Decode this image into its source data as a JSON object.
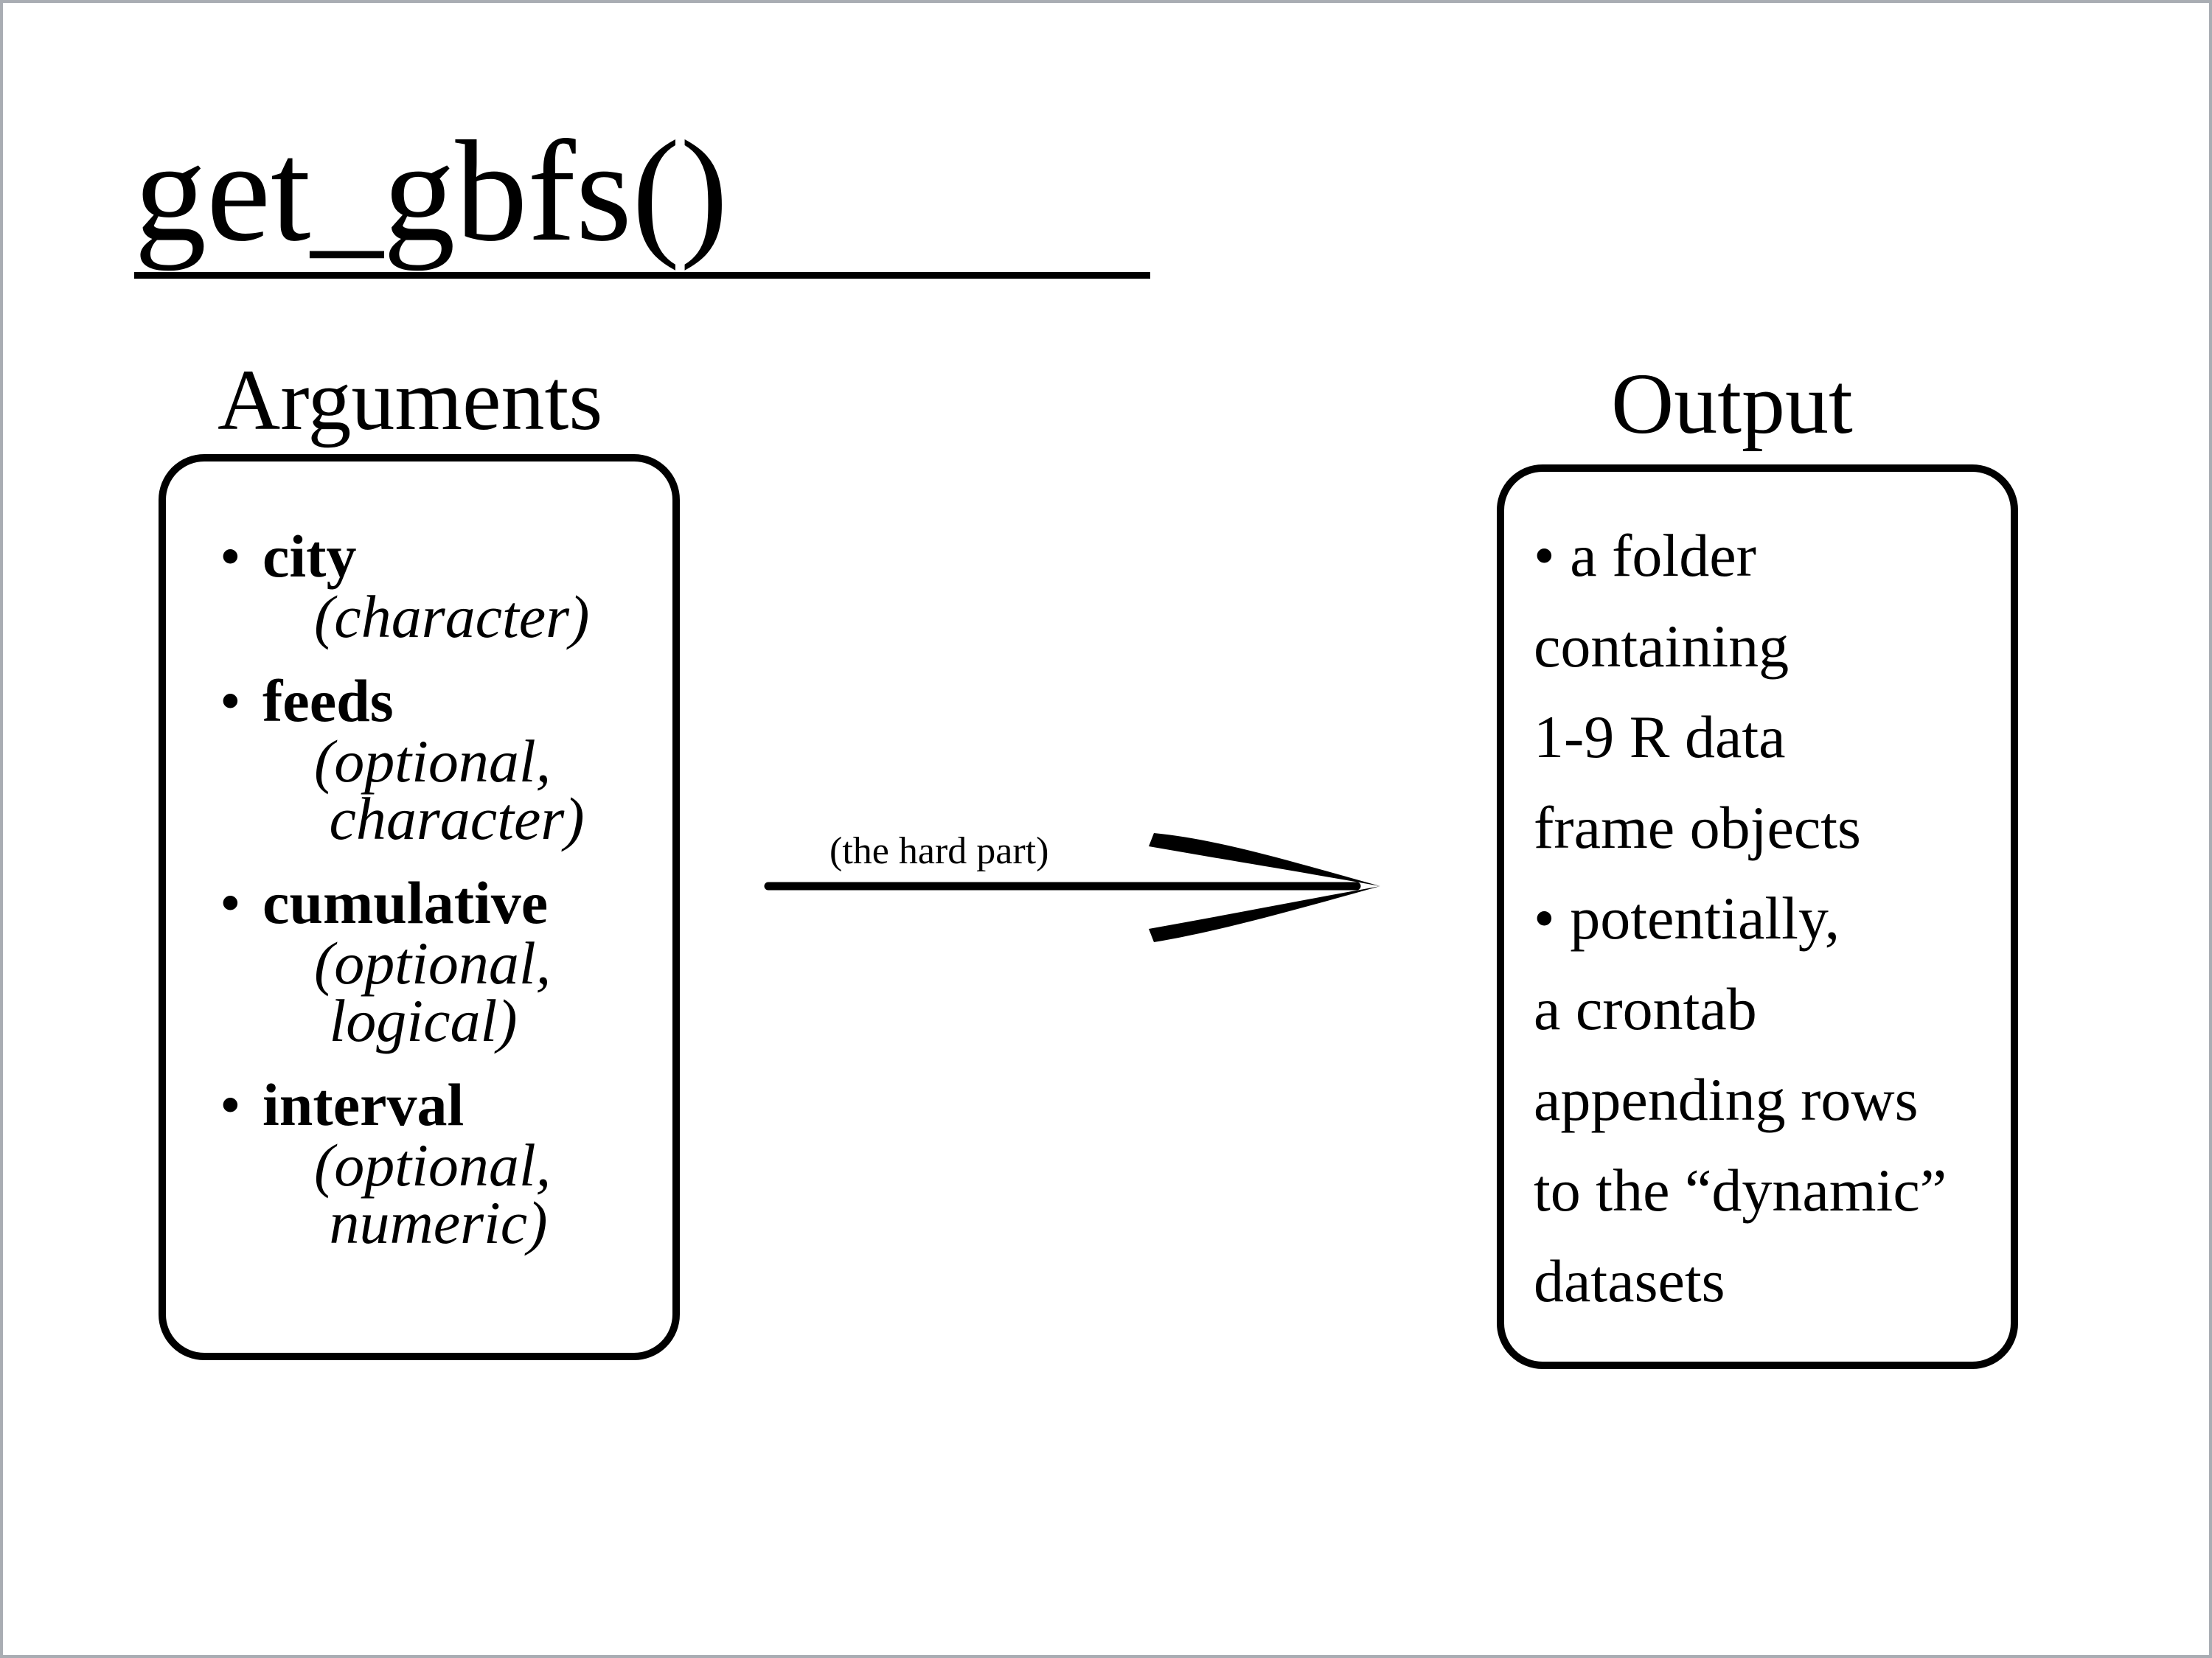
{
  "title": "get_gbfs()",
  "arguments": {
    "heading": "Arguments",
    "items": [
      {
        "bullet": "•",
        "name": "city",
        "type_lines": [
          "(character)"
        ]
      },
      {
        "bullet": "•",
        "name": "feeds",
        "type_lines": [
          "(optional,",
          " character)"
        ]
      },
      {
        "bullet": "•",
        "name": "cumulative",
        "type_lines": [
          "(optional,",
          " logical)"
        ]
      },
      {
        "bullet": "•",
        "name": "interval",
        "type_lines": [
          "(optional,",
          " numeric)"
        ]
      }
    ]
  },
  "arrow": {
    "label": "(the hard part)"
  },
  "output": {
    "heading": "Output",
    "lines": [
      "• a folder",
      "containing",
      "1-9 R data",
      "frame objects",
      "• potentially,",
      "a crontab",
      "appending rows",
      "to the “dynamic”",
      "datasets"
    ]
  },
  "colors": {
    "frame_border": "#a9adb3",
    "ink": "#000000",
    "background": "#ffffff"
  }
}
